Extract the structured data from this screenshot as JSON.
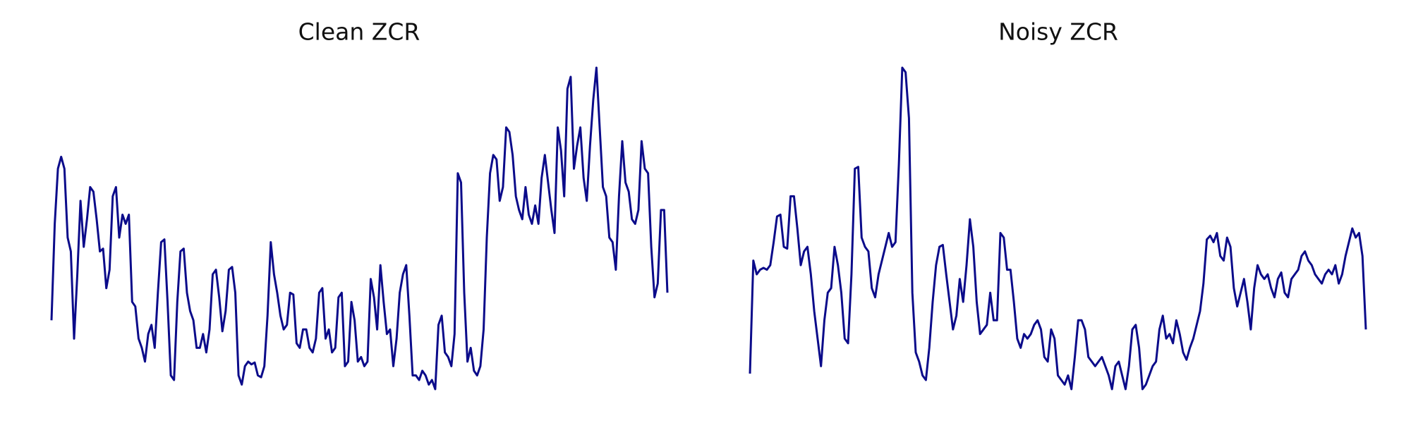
{
  "chart_data": [
    {
      "type": "line",
      "title": "Clean ZCR",
      "color": "#0b0b8a",
      "values": [
        90,
        195,
        255,
        268,
        255,
        180,
        165,
        70,
        140,
        220,
        170,
        200,
        235,
        230,
        200,
        165,
        168,
        125,
        145,
        225,
        235,
        180,
        205,
        195,
        205,
        110,
        105,
        70,
        60,
        45,
        75,
        85,
        60,
        120,
        175,
        178,
        110,
        30,
        25,
        110,
        165,
        168,
        120,
        100,
        90,
        60,
        60,
        75,
        55,
        80,
        140,
        145,
        115,
        78,
        100,
        145,
        148,
        120,
        30,
        20,
        40,
        45,
        42,
        44,
        30,
        28,
        40,
        95,
        175,
        140,
        120,
        95,
        80,
        85,
        120,
        118,
        65,
        60,
        80,
        80,
        60,
        55,
        70,
        120,
        125,
        70,
        80,
        55,
        60,
        115,
        120,
        40,
        45,
        110,
        90,
        45,
        50,
        40,
        45,
        135,
        115,
        80,
        150,
        110,
        75,
        80,
        40,
        70,
        120,
        140,
        150,
        95,
        30,
        30,
        25,
        35,
        30,
        20,
        25,
        15,
        85,
        95,
        55,
        50,
        40,
        75,
        250,
        240,
        120,
        45,
        60,
        35,
        30,
        40,
        80,
        180,
        250,
        270,
        265,
        220,
        235,
        300,
        295,
        270,
        225,
        210,
        200,
        235,
        205,
        195,
        215,
        195,
        245,
        270,
        240,
        210,
        185,
        300,
        275,
        225,
        342,
        355,
        255,
        280,
        300,
        245,
        220,
        280,
        330,
        365,
        300,
        235,
        225,
        180,
        175,
        145,
        225,
        285,
        240,
        230,
        200,
        195,
        210,
        285,
        255,
        250,
        170,
        115,
        130,
        210,
        210,
        120
      ]
    },
    {
      "type": "line",
      "title": "Noisy ZCR",
      "color": "#0b0b8a",
      "values": [
        32,
        155,
        140,
        145,
        147,
        145,
        150,
        175,
        203,
        205,
        170,
        168,
        225,
        225,
        190,
        150,
        165,
        170,
        140,
        100,
        70,
        40,
        90,
        120,
        125,
        170,
        150,
        120,
        70,
        65,
        140,
        255,
        257,
        180,
        170,
        165,
        125,
        115,
        140,
        155,
        170,
        185,
        170,
        175,
        260,
        365,
        360,
        310,
        120,
        55,
        45,
        30,
        25,
        60,
        110,
        150,
        170,
        172,
        140,
        110,
        80,
        95,
        135,
        110,
        150,
        200,
        170,
        110,
        75,
        80,
        85,
        120,
        90,
        90,
        185,
        180,
        145,
        145,
        110,
        70,
        60,
        75,
        70,
        75,
        85,
        90,
        80,
        50,
        45,
        80,
        70,
        30,
        25,
        20,
        30,
        15,
        50,
        90,
        90,
        80,
        50,
        45,
        40,
        45,
        50,
        40,
        30,
        15,
        40,
        45,
        30,
        15,
        40,
        80,
        85,
        60,
        15,
        20,
        30,
        40,
        45,
        80,
        95,
        70,
        75,
        65,
        90,
        75,
        55,
        47,
        60,
        70,
        85,
        100,
        130,
        178,
        182,
        175,
        185,
        160,
        155,
        180,
        170,
        125,
        105,
        120,
        135,
        110,
        80,
        125,
        150,
        140,
        135,
        140,
        125,
        115,
        135,
        142,
        120,
        115,
        135,
        140,
        145,
        160,
        165,
        155,
        150,
        140,
        135,
        130,
        140,
        145,
        140,
        150,
        130,
        140,
        160,
        175,
        190,
        180,
        185,
        160,
        80
      ]
    }
  ]
}
